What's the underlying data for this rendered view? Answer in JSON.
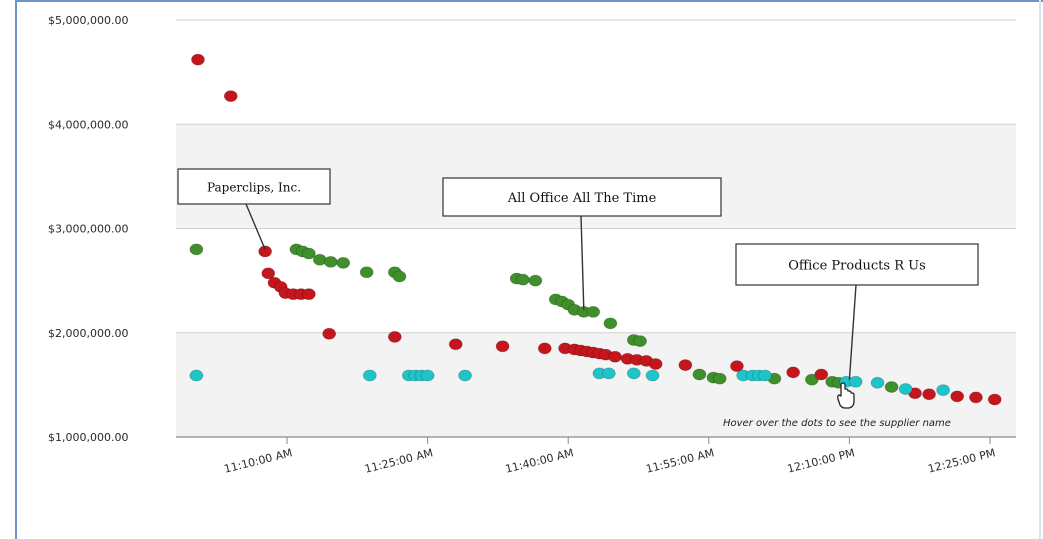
{
  "chart_data": {
    "type": "scatter",
    "y_ticks": [
      "$1,000,000.00",
      "$2,000,000.00",
      "$3,000,000.00",
      "$4,000,000.00",
      "$5,000,000.00"
    ],
    "ylim": [
      1000000,
      5000000
    ],
    "x_ticks": [
      "11:10:00 AM",
      "11:25:00 AM",
      "11:40:00 AM",
      "11:55:00 AM",
      "12:10:00 PM",
      "12:25:00 PM"
    ],
    "xlim": [
      "11:00:00",
      "12:27:00"
    ],
    "grid": true,
    "legend": "none",
    "series_colors": [
      "#c4161c",
      "#3f8f2a",
      "#1fc4c8"
    ],
    "series": [
      {
        "color": "#c4161c",
        "points": [
          {
            "x": "11:00:30",
            "y": 4620000
          },
          {
            "x": "11:04:00",
            "y": 4270000
          },
          {
            "x": "11:07:40",
            "y": 2780000
          },
          {
            "x": "11:08:00",
            "y": 2570000
          },
          {
            "x": "11:08:40",
            "y": 2480000
          },
          {
            "x": "11:09:20",
            "y": 2440000
          },
          {
            "x": "11:09:50",
            "y": 2380000
          },
          {
            "x": "11:10:40",
            "y": 2370000
          },
          {
            "x": "11:11:30",
            "y": 2370000
          },
          {
            "x": "11:12:20",
            "y": 2370000
          },
          {
            "x": "11:14:30",
            "y": 1990000
          },
          {
            "x": "11:21:30",
            "y": 1960000
          },
          {
            "x": "11:28:00",
            "y": 1890000
          },
          {
            "x": "11:33:00",
            "y": 1870000
          },
          {
            "x": "11:37:30",
            "y": 1850000
          },
          {
            "x": "11:39:40",
            "y": 1850000
          },
          {
            "x": "11:40:40",
            "y": 1840000
          },
          {
            "x": "11:41:20",
            "y": 1830000
          },
          {
            "x": "11:42:00",
            "y": 1820000
          },
          {
            "x": "11:42:40",
            "y": 1810000
          },
          {
            "x": "11:43:20",
            "y": 1800000
          },
          {
            "x": "11:44:00",
            "y": 1790000
          },
          {
            "x": "11:45:00",
            "y": 1770000
          },
          {
            "x": "11:46:20",
            "y": 1750000
          },
          {
            "x": "11:47:20",
            "y": 1740000
          },
          {
            "x": "11:48:20",
            "y": 1730000
          },
          {
            "x": "11:49:20",
            "y": 1700000
          },
          {
            "x": "11:52:30",
            "y": 1690000
          },
          {
            "x": "11:58:00",
            "y": 1680000
          },
          {
            "x": "12:04:00",
            "y": 1620000
          },
          {
            "x": "12:07:00",
            "y": 1600000
          },
          {
            "x": "12:17:00",
            "y": 1420000
          },
          {
            "x": "12:18:30",
            "y": 1410000
          },
          {
            "x": "12:21:30",
            "y": 1390000
          },
          {
            "x": "12:23:30",
            "y": 1380000
          },
          {
            "x": "12:25:30",
            "y": 1360000
          }
        ]
      },
      {
        "color": "#3f8f2a",
        "points": [
          {
            "x": "11:00:20",
            "y": 2800000
          },
          {
            "x": "11:11:00",
            "y": 2800000
          },
          {
            "x": "11:11:40",
            "y": 2780000
          },
          {
            "x": "11:12:20",
            "y": 2760000
          },
          {
            "x": "11:13:30",
            "y": 2700000
          },
          {
            "x": "11:14:40",
            "y": 2680000
          },
          {
            "x": "11:16:00",
            "y": 2670000
          },
          {
            "x": "11:18:30",
            "y": 2580000
          },
          {
            "x": "11:21:30",
            "y": 2580000
          },
          {
            "x": "11:22:00",
            "y": 2540000
          },
          {
            "x": "11:34:30",
            "y": 2520000
          },
          {
            "x": "11:35:10",
            "y": 2510000
          },
          {
            "x": "11:36:30",
            "y": 2500000
          },
          {
            "x": "11:38:40",
            "y": 2320000
          },
          {
            "x": "11:39:20",
            "y": 2300000
          },
          {
            "x": "11:40:00",
            "y": 2270000
          },
          {
            "x": "11:40:40",
            "y": 2220000
          },
          {
            "x": "11:41:40",
            "y": 2200000
          },
          {
            "x": "11:42:40",
            "y": 2200000
          },
          {
            "x": "11:44:30",
            "y": 2090000
          },
          {
            "x": "11:47:00",
            "y": 1930000
          },
          {
            "x": "11:47:40",
            "y": 1920000
          },
          {
            "x": "11:54:00",
            "y": 1600000
          },
          {
            "x": "11:55:30",
            "y": 1570000
          },
          {
            "x": "11:56:10",
            "y": 1560000
          },
          {
            "x": "12:02:00",
            "y": 1560000
          },
          {
            "x": "12:06:00",
            "y": 1550000
          },
          {
            "x": "12:08:10",
            "y": 1530000
          },
          {
            "x": "12:08:50",
            "y": 1520000
          },
          {
            "x": "12:14:30",
            "y": 1480000
          }
        ]
      },
      {
        "color": "#1fc4c8",
        "points": [
          {
            "x": "11:00:20",
            "y": 1590000
          },
          {
            "x": "11:18:50",
            "y": 1590000
          },
          {
            "x": "11:23:00",
            "y": 1590000
          },
          {
            "x": "11:23:40",
            "y": 1590000
          },
          {
            "x": "11:24:20",
            "y": 1590000
          },
          {
            "x": "11:25:00",
            "y": 1590000
          },
          {
            "x": "11:29:00",
            "y": 1590000
          },
          {
            "x": "11:43:20",
            "y": 1610000
          },
          {
            "x": "11:44:20",
            "y": 1610000
          },
          {
            "x": "11:47:00",
            "y": 1610000
          },
          {
            "x": "11:49:00",
            "y": 1590000
          },
          {
            "x": "11:58:40",
            "y": 1590000
          },
          {
            "x": "11:59:40",
            "y": 1590000
          },
          {
            "x": "12:00:20",
            "y": 1590000
          },
          {
            "x": "12:01:00",
            "y": 1590000
          },
          {
            "x": "12:09:40",
            "y": 1530000
          },
          {
            "x": "12:10:40",
            "y": 1530000
          },
          {
            "x": "12:13:00",
            "y": 1520000
          },
          {
            "x": "12:16:00",
            "y": 1460000
          },
          {
            "x": "12:20:00",
            "y": 1450000
          }
        ]
      }
    ],
    "annotations": [
      {
        "label": "Paperclips, Inc.",
        "target": {
          "x": "11:07:40",
          "y": 2780000
        }
      },
      {
        "label": "All Office All The Time",
        "target": {
          "x": "11:41:40",
          "y": 2200000
        }
      },
      {
        "label": "Office Products R Us",
        "target": {
          "x": "12:10:00",
          "y": 1530000
        }
      }
    ],
    "hint": "Hover over the dots to see the supplier name"
  }
}
